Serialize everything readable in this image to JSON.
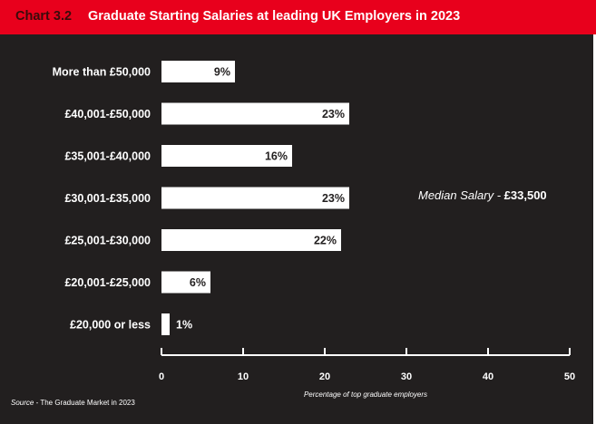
{
  "header": {
    "chart_number": "Chart 3.2",
    "title": "Graduate Starting Salaries at leading UK Employers in 2023"
  },
  "annotation": {
    "prefix": "Median Salary - ",
    "value": "£33,500"
  },
  "source": {
    "label": "Source",
    "text": " - The Graduate Market in 2023"
  },
  "colors": {
    "background": "#221f1f",
    "title_bar": "#e8001c",
    "bars": "#ffffff"
  },
  "chart_data": {
    "type": "bar",
    "orientation": "horizontal",
    "title": "Graduate Starting Salaries at leading UK Employers in 2023",
    "categories": [
      "More than £50,000",
      "£40,001-£50,000",
      "£35,001-£40,000",
      "£30,001-£35,000",
      "£25,001-£30,000",
      "£20,001-£25,000",
      "£20,000 or less"
    ],
    "values": [
      9,
      23,
      16,
      23,
      22,
      6,
      1
    ],
    "value_labels": [
      "9%",
      "23%",
      "16%",
      "23%",
      "22%",
      "6%",
      "1%"
    ],
    "xlabel": "Percentage of top graduate employers",
    "ylabel": "",
    "xlim": [
      0,
      50
    ],
    "xticks": [
      0,
      10,
      20,
      30,
      40,
      50
    ],
    "grid": false,
    "legend": "none"
  }
}
